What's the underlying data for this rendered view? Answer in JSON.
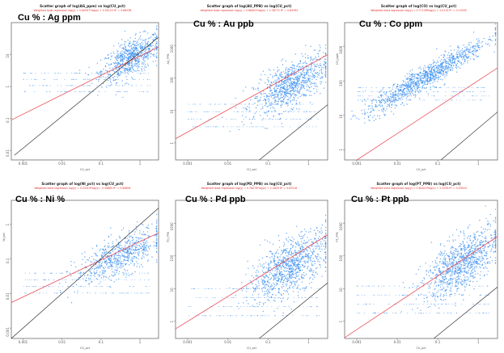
{
  "colors": {
    "points": "#3a8ff0",
    "regression": "#e8505a",
    "equal_line": "#333333"
  },
  "chart_data": [
    {
      "type": "scatter",
      "name_label": "Cu % : Ag ppm",
      "title": "Scatter graph of log(AG_ppm) vs log(CU_pct)",
      "subtitle": "Weighted least regression    log(y) = 0.60597*log(x) + 0.95123    R² = 0.86238",
      "xlabel": "CU_pct",
      "ylabel": "",
      "xticks": [
        "0.001",
        "0.01",
        "0.1",
        "1"
      ],
      "yticks": [
        "10",
        "1",
        "0.1",
        "0.01"
      ],
      "log_scale": true,
      "xlim": [
        0.0005,
        3
      ],
      "ylim": [
        0.005,
        100
      ],
      "cloud_center": [
        0.6,
        8
      ],
      "cloud_sd": [
        0.38,
        0.35
      ],
      "cloud_n": 700,
      "line_start": [
        0.0006,
        0.007
      ],
      "regression": {
        "slope": 0.60597,
        "intercept": 0.95123
      }
    },
    {
      "type": "scatter",
      "name_label": "Cu % : Au ppb",
      "title": "Scatter graph of log(AU_PPB) vs log(CU_pct)",
      "subtitle": "Weighted least regression    log(y) = 0.68403*log(x) + 2.38772    R² = 0.65393",
      "xlabel": "CU_pct",
      "ylabel": "AU_PPB",
      "xticks": [
        "0.001",
        "0.01",
        "0.1",
        "1"
      ],
      "yticks": [
        "1000",
        "100",
        "10",
        "1"
      ],
      "log_scale": true,
      "xlim": [
        0.0005,
        3
      ],
      "ylim": [
        0.3,
        5000
      ],
      "cloud_center": [
        0.35,
        60
      ],
      "cloud_sd": [
        0.45,
        0.42
      ],
      "cloud_n": 900,
      "line_start": [
        0.06,
        0.3
      ],
      "regression": {
        "slope": 0.68403,
        "intercept": 2.38772
      }
    },
    {
      "type": "scatter",
      "name_label": "Cu % : Co ppm",
      "title": "Scatter graph of log(CO) vs log(CU_pct)",
      "subtitle": "Weighted least regression    log(y) = 0.77138*log(x) + 2.0115    R² = 0.15535",
      "xlabel": "CU_pct",
      "ylabel": "CO_ppm",
      "xticks": [
        "0.001",
        "0.01",
        "0.1",
        "1"
      ],
      "yticks": [
        "1000",
        "100",
        "10",
        "1"
      ],
      "log_scale": true,
      "xlim": [
        0.0005,
        3
      ],
      "ylim": [
        0.5,
        5000
      ],
      "cloud_center": [
        0.05,
        130
      ],
      "cloud_sd": [
        0.75,
        0.22
      ],
      "cloud_n": 1100,
      "line_start": [
        0.12,
        0.5
      ],
      "regression": {
        "slope": 0.77138,
        "intercept": 2.0115
      }
    },
    {
      "type": "scatter",
      "name_label": "Cu % : Ni %",
      "title": "Scatter graph of log(NI_pct) vs log(CU_pct)",
      "subtitle": "Weighted least regression    log(y) = 0.53419*log(x) - 0.49665    R² = 0.66694",
      "xlabel": "CU_pct",
      "ylabel": "NI_pct",
      "xticks": [
        "0.001",
        "0.01",
        "0.1",
        "1"
      ],
      "yticks": [
        "1",
        "0.1",
        "0.01",
        "0.001"
      ],
      "log_scale": true,
      "xlim": [
        0.0005,
        3
      ],
      "ylim": [
        0.0005,
        5
      ],
      "cloud_center": [
        0.3,
        0.12
      ],
      "cloud_sd": [
        0.55,
        0.35
      ],
      "cloud_n": 700,
      "line_start": [
        0.0005,
        0.0005
      ],
      "regression": {
        "slope": 0.53419,
        "intercept": -0.49665
      }
    },
    {
      "type": "scatter",
      "name_label": "Cu % : Pd ppb",
      "title": "Scatter graph of log(PD_PPB) vs log(CU_pct)",
      "subtitle": "Weighted least regression    log(y) = 0.76078*log(x) + 2.2839    R² = 0.62516",
      "xlabel": "CU_pct",
      "ylabel": "PD_PPB",
      "xticks": [
        "0.001",
        "0.01",
        "0.1",
        "1"
      ],
      "yticks": [
        "1000",
        "100",
        "10",
        "1"
      ],
      "log_scale": true,
      "xlim": [
        0.0005,
        3
      ],
      "ylim": [
        0.3,
        5000
      ],
      "cloud_center": [
        0.35,
        50
      ],
      "cloud_sd": [
        0.5,
        0.5
      ],
      "cloud_n": 1000,
      "line_start": [
        0.06,
        0.3
      ],
      "regression": {
        "slope": 0.76078,
        "intercept": 2.2839
      }
    },
    {
      "type": "scatter",
      "name_label": "Cu % : Pt ppb",
      "title": "Scatter graph of log(PT_PPB) vs log(CU_pct)",
      "subtitle": "Weighted least regression    log(y) = 0.81822*log(x) + 2.2039    R² = 0.59524",
      "xlabel": "CU_pct",
      "ylabel": "PT_PPB",
      "xticks": [
        "0.001",
        "0.01",
        "0.1",
        "1"
      ],
      "yticks": [
        "1000",
        "100",
        "10",
        "1"
      ],
      "log_scale": true,
      "xlim": [
        0.0005,
        3
      ],
      "ylim": [
        0.3,
        5000
      ],
      "cloud_center": [
        0.4,
        60
      ],
      "cloud_sd": [
        0.48,
        0.5
      ],
      "cloud_n": 1000,
      "line_start": [
        0.08,
        0.3
      ],
      "regression": {
        "slope": 0.81822,
        "intercept": 2.2039
      }
    }
  ]
}
